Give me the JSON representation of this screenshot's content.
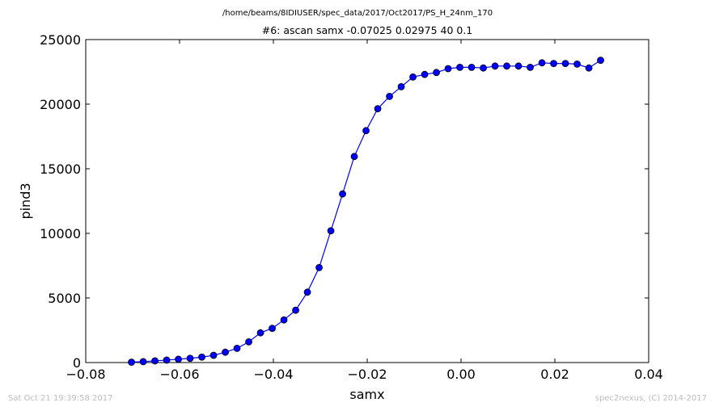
{
  "header": {
    "path": "/home/beams/8IDIUSER/spec_data/2017/Oct2017/PS_H_24nm_170"
  },
  "footer": {
    "timestamp": "Sat Oct 21 19:39:58 2017",
    "credit": "spec2nexus, (C) 2014-2017"
  },
  "chart_data": {
    "type": "line",
    "title": "#6: ascan  samx -0.07025 0.02975  40 0.1",
    "xlabel": "samx",
    "ylabel": "pind3",
    "xlim": [
      -0.08,
      0.04
    ],
    "ylim": [
      0,
      25000
    ],
    "xticks": [
      -0.08,
      -0.06,
      -0.04,
      -0.02,
      0.0,
      0.02,
      0.04
    ],
    "xtick_labels": [
      "−0.08",
      "−0.06",
      "−0.04",
      "−0.02",
      "0.00",
      "0.02",
      "0.04"
    ],
    "yticks": [
      0,
      5000,
      10000,
      15000,
      20000,
      25000
    ],
    "ytick_labels": [
      "0",
      "5000",
      "10000",
      "15000",
      "20000",
      "25000"
    ],
    "grid": false,
    "legend": "none",
    "series_color": "#0000ff",
    "x": [
      -0.07025,
      -0.06775,
      -0.06525,
      -0.06275,
      -0.06025,
      -0.05775,
      -0.05525,
      -0.05275,
      -0.05025,
      -0.04775,
      -0.04525,
      -0.04275,
      -0.04025,
      -0.03775,
      -0.03525,
      -0.03275,
      -0.03025,
      -0.02775,
      -0.02525,
      -0.02275,
      -0.02025,
      -0.01775,
      -0.01525,
      -0.01275,
      -0.01025,
      -0.00775,
      -0.00525,
      -0.00275,
      -0.00025,
      0.00225,
      0.00475,
      0.00725,
      0.00975,
      0.01225,
      0.01475,
      0.01725,
      0.01975,
      0.02225,
      0.02475,
      0.02725,
      0.02975
    ],
    "y": [
      30,
      70,
      130,
      190,
      260,
      330,
      420,
      560,
      800,
      1100,
      1600,
      2300,
      2650,
      3300,
      4050,
      5450,
      7350,
      10200,
      13050,
      15950,
      17950,
      19650,
      20600,
      21350,
      22100,
      22300,
      22450,
      22750,
      22850,
      22850,
      22800,
      22950,
      22950,
      22950,
      22850,
      23200,
      23150,
      23150,
      23100,
      22800,
      23400
    ]
  }
}
